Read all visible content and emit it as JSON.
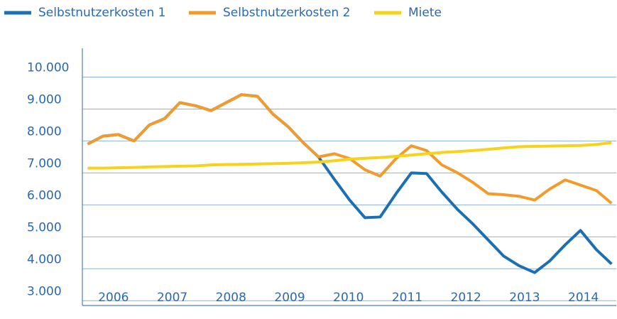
{
  "chart_data": {
    "type": "line",
    "x": [
      2005.56,
      2005.82,
      2006.08,
      2006.35,
      2006.61,
      2006.87,
      2007.13,
      2007.4,
      2007.66,
      2007.92,
      2008.18,
      2008.45,
      2008.71,
      2008.97,
      2009.23,
      2009.49,
      2009.76,
      2010.02,
      2010.28,
      2010.54,
      2010.81,
      2011.07,
      2011.33,
      2011.59,
      2011.86,
      2012.12,
      2012.38,
      2012.64,
      2012.9,
      2013.17,
      2013.43,
      2013.69,
      2013.95,
      2014.22,
      2014.48
    ],
    "series": [
      {
        "name": "Selbstnutzerkosten 1",
        "color": "#1d6fb4",
        "values": [
          7900,
          8150,
          8200,
          8000,
          8500,
          8700,
          9200,
          9100,
          8950,
          9200,
          9450,
          9400,
          8850,
          8450,
          7950,
          7500,
          6800,
          6150,
          5600,
          5620,
          6350,
          7000,
          6980,
          6400,
          5850,
          5400,
          4900,
          4400,
          4100,
          3880,
          4250,
          4750,
          5200,
          4600,
          4150
        ]
      },
      {
        "name": "Selbstnutzerkosten 2",
        "color": "#f29b2d",
        "values": [
          7900,
          8150,
          8200,
          8000,
          8500,
          8700,
          9200,
          9100,
          8950,
          9200,
          9450,
          9400,
          8850,
          8450,
          7950,
          7500,
          7600,
          7450,
          7100,
          6900,
          7450,
          7850,
          7700,
          7250,
          7000,
          6700,
          6350,
          6320,
          6270,
          6150,
          6500,
          6780,
          6620,
          6450,
          6050
        ]
      },
      {
        "name": "Miete",
        "color": "#f6d31a",
        "values": [
          7150,
          7150,
          7160,
          7170,
          7190,
          7200,
          7210,
          7220,
          7250,
          7260,
          7270,
          7280,
          7290,
          7300,
          7320,
          7340,
          7380,
          7430,
          7460,
          7480,
          7520,
          7560,
          7600,
          7640,
          7670,
          7700,
          7740,
          7780,
          7820,
          7830,
          7840,
          7850,
          7860,
          7890,
          7950
        ]
      }
    ],
    "xlim": [
      2005.47,
      2014.56
    ],
    "xticks": [
      2006,
      2007,
      2008,
      2009,
      2010,
      2011,
      2012,
      2013,
      2014
    ],
    "ylim": [
      2850,
      10900
    ],
    "yticks": [
      {
        "value": 3000,
        "label": "3.000"
      },
      {
        "value": 4000,
        "label": "4.000"
      },
      {
        "value": 5000,
        "label": "5.000"
      },
      {
        "value": 6000,
        "label": "6.000"
      },
      {
        "value": 7000,
        "label": "7.000"
      },
      {
        "value": 8000,
        "label": "8.000"
      },
      {
        "value": 9000,
        "label": "9.000"
      },
      {
        "value": 10000,
        "label": "10.000"
      }
    ],
    "grid": true
  }
}
